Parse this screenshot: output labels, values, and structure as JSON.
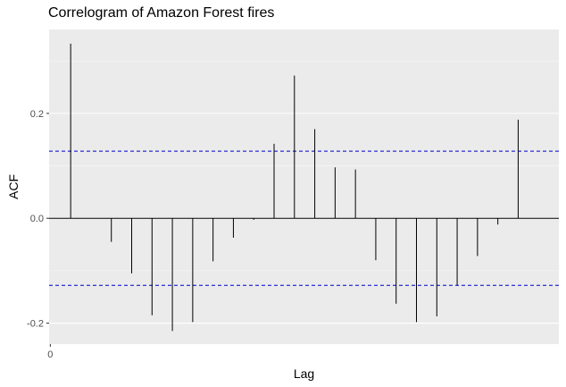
{
  "chart_data": {
    "type": "bar",
    "title": "Correlogram of Amazon Forest fires",
    "xlabel": "Lag",
    "ylabel": "ACF",
    "x_ticks": [
      {
        "value": 0,
        "label": "0"
      }
    ],
    "y_ticks": [
      {
        "value": -0.2,
        "label": "-0.2"
      },
      {
        "value": 0.0,
        "label": "0.0"
      },
      {
        "value": 0.2,
        "label": "0.2"
      }
    ],
    "xlim": [
      0,
      24
    ],
    "ylim": [
      -0.24,
      0.36
    ],
    "grid": true,
    "confidence_bound": 0.128,
    "colors": {
      "panel": "#ebebeb",
      "grid_major": "#ffffff",
      "bar": "#000000",
      "bound": "#0000cc"
    },
    "series": [
      {
        "x": [
          1,
          2,
          3,
          4,
          5,
          6,
          7,
          8,
          9,
          10,
          11,
          12,
          13,
          14,
          15,
          16,
          17,
          18,
          19,
          20,
          21,
          22,
          23,
          24
        ],
        "values": [
          0.333,
          0.0,
          -0.045,
          -0.105,
          -0.185,
          -0.215,
          -0.198,
          -0.082,
          -0.037,
          -0.003,
          0.142,
          0.272,
          0.17,
          0.097,
          0.093,
          -0.08,
          -0.163,
          -0.198,
          -0.187,
          -0.128,
          -0.072,
          -0.012,
          0.188,
          0.0
        ]
      }
    ]
  }
}
